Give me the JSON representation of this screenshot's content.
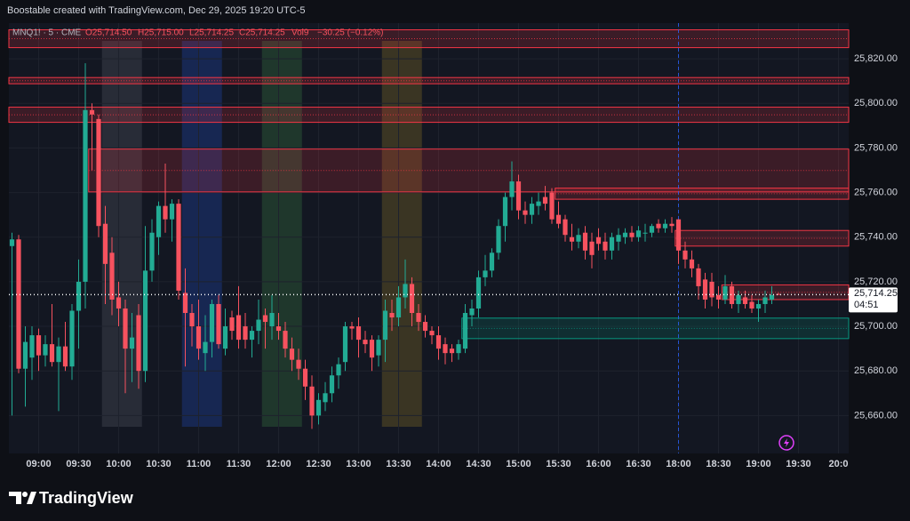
{
  "chart_data": {
    "type": "candlestick",
    "attribution": "Boostable created with TradingView.com, Dec 29, 2025 19:20 UTC-5",
    "legend": {
      "symbol": "MNQ1! · 5 · CME",
      "open": "O25,714.50",
      "high": "H25,715.00",
      "low": "L25,714.25",
      "close": "C25,714.25",
      "volume": "Vol9",
      "change": "−30.25 (−0.12%)"
    },
    "brand": "TradingView",
    "up_color": "#22ab94",
    "down_color": "#f7525f",
    "categories": [
      null,
      null,
      null,
      null,
      "09:00",
      null,
      null,
      null,
      null,
      null,
      "09:30",
      null,
      null,
      null,
      null,
      null,
      "10:00",
      null,
      null,
      null,
      null,
      null,
      "10:30",
      null,
      null,
      null,
      null,
      null,
      "11:00",
      null,
      null,
      null,
      null,
      null,
      "11:30",
      null,
      null,
      null,
      null,
      null,
      "12:00",
      null,
      null,
      null,
      null,
      null,
      "12:30",
      null,
      null,
      null,
      null,
      null,
      "13:00",
      null,
      null,
      null,
      null,
      null,
      "13:30",
      null,
      null,
      null,
      null,
      null,
      "14:00",
      null,
      null,
      null,
      null,
      null,
      "14:30",
      null,
      null,
      null,
      null,
      null,
      "15:00",
      null,
      null,
      null,
      null,
      null,
      "15:30",
      null,
      null,
      null,
      null,
      null,
      "16:00",
      null,
      null,
      null,
      null,
      null,
      "16:30",
      null,
      null,
      null,
      null,
      null,
      "18:00",
      null,
      null,
      null,
      null,
      null,
      "18:30",
      null,
      null,
      null,
      null,
      null,
      "19:00",
      null,
      null,
      null,
      null,
      null,
      "19:30",
      null,
      null,
      null,
      null,
      null,
      "20:0"
    ],
    "open": [
      25736,
      25739,
      25681,
      25686,
      25696,
      25687,
      25692,
      25684,
      25691,
      25682,
      25707,
      25720,
      25797,
      25793,
      25746,
      25733,
      25713,
      25708,
      25690,
      25705,
      25680,
      25725,
      25740,
      25754,
      25748,
      25755,
      25715,
      25706,
      25700,
      25688,
      25693,
      25710,
      25690,
      25704,
      25705,
      25700,
      25694,
      25698,
      25705,
      25700,
      25700,
      25698,
      25690,
      25685,
      25681,
      25673,
      25660,
      25666,
      25670,
      25678,
      25684,
      25700,
      25700,
      25694,
      25694,
      25687,
      25694,
      25706,
      25704,
      25713,
      25719,
      25706,
      25702,
      25698,
      25696,
      25692,
      25690,
      25688,
      25690,
      25705,
      25708,
      25722,
      25725,
      25733,
      25745,
      25758,
      25765,
      25752,
      25750,
      25754,
      25758,
      25760,
      25750,
      25748,
      25740,
      25738,
      25742,
      25738,
      25740,
      25738,
      25734,
      25738,
      25740,
      25742,
      25740,
      25742,
      25742,
      25746,
      25744,
      25746,
      25748,
      25734,
      25730,
      25726,
      25721,
      25720,
      25714,
      25712,
      25718,
      25710,
      25713,
      25711,
      25708,
      25710,
      25712,
      25714.5,
      null,
      null,
      null,
      null,
      null,
      null,
      null,
      null,
      null
    ],
    "high": [
      25742,
      25741,
      25700,
      25700,
      25699,
      25696,
      25710,
      25695,
      25702,
      25710,
      25730,
      25818,
      25800,
      25795,
      25754,
      25740,
      25720,
      25712,
      25706,
      25710,
      25745,
      25748,
      25756,
      25773,
      25757,
      25757,
      25726,
      25710,
      25712,
      25705,
      25712,
      25714,
      25708,
      25707,
      25718,
      25706,
      25700,
      25712,
      25708,
      25714,
      25706,
      25702,
      25695,
      25690,
      25685,
      25678,
      25670,
      25675,
      25682,
      25686,
      25702,
      25702,
      25704,
      25698,
      25696,
      25696,
      25712,
      25712,
      25718,
      25730,
      25722,
      25710,
      25705,
      25700,
      25700,
      25695,
      25692,
      25694,
      25710,
      25712,
      25725,
      25732,
      25735,
      25748,
      25760,
      25774,
      25768,
      25756,
      25758,
      25760,
      25763,
      25762,
      25756,
      25750,
      25746,
      25744,
      25745,
      25742,
      25744,
      25742,
      25742,
      25744,
      25744,
      25745,
      25745,
      25746,
      25746,
      25748,
      25748,
      25749,
      25748,
      25738,
      25734,
      25728,
      25724,
      25724,
      25718,
      25723,
      25720,
      25716,
      25716,
      25714,
      25712,
      25716,
      25718,
      25715,
      null,
      null,
      null,
      null,
      null,
      null,
      null,
      null,
      null
    ],
    "low": [
      25660,
      25679,
      25664,
      25676,
      25680,
      25682,
      25682,
      25662,
      25680,
      25676,
      25690,
      25708,
      25770,
      25740,
      25710,
      25705,
      25700,
      25670,
      25675,
      25672,
      25675,
      25720,
      25732,
      25742,
      25738,
      25712,
      25682,
      25691,
      25685,
      25680,
      25686,
      25690,
      25687,
      25694,
      25690,
      25690,
      25686,
      25692,
      25690,
      25694,
      25694,
      25686,
      25680,
      25676,
      25667,
      25654,
      25656,
      25662,
      25666,
      25672,
      25680,
      25694,
      25686,
      25688,
      25680,
      25682,
      25684,
      25698,
      25700,
      25708,
      25700,
      25698,
      25695,
      25692,
      25685,
      25683,
      25684,
      25685,
      25688,
      25700,
      25704,
      25718,
      25722,
      25730,
      25738,
      25752,
      25748,
      25746,
      25746,
      25750,
      25752,
      25746,
      25744,
      25738,
      25734,
      25735,
      25730,
      25726,
      25734,
      25730,
      25730,
      25734,
      25737,
      25738,
      25738,
      25738,
      25740,
      25742,
      25742,
      25742,
      25728,
      25726,
      25722,
      25712,
      25708,
      25709,
      25708,
      25710,
      25708,
      25706,
      25708,
      25706,
      25702,
      25706,
      25710,
      25714.25,
      null,
      null,
      null,
      null,
      null,
      null,
      null,
      null,
      null
    ],
    "close": [
      25739,
      25681,
      25693,
      25696,
      25687,
      25692,
      25684,
      25691,
      25682,
      25707,
      25720,
      25797,
      25795,
      25745,
      25728,
      25712,
      25708,
      25690,
      25695,
      25680,
      25725,
      25742,
      25754,
      25748,
      25755,
      25716,
      25706,
      25700,
      25690,
      25693,
      25710,
      25692,
      25700,
      25698,
      25694,
      25694,
      25698,
      25703,
      25702,
      25706,
      25698,
      25690,
      25685,
      25681,
      25673,
      25660,
      25667,
      25670,
      25678,
      25683,
      25700,
      25699,
      25694,
      25692,
      25686,
      25694,
      25707,
      25704,
      25713,
      25719,
      25706,
      25702,
      25698,
      25696,
      25690,
      25688,
      25688,
      25692,
      25706,
      25708,
      25722,
      25725,
      25733,
      25745,
      25758,
      25765,
      25752,
      25750,
      25755,
      25756,
      25755,
      25748,
      25746,
      25741,
      25738,
      25741,
      25734,
      25732,
      25737,
      25734,
      25740,
      25741,
      25742,
      25740,
      25743,
      25742,
      25745,
      25744,
      25746,
      25745,
      25734,
      25730,
      25726,
      25718,
      25712,
      25713,
      25712,
      25718,
      25710,
      25714,
      25710,
      25708,
      25710,
      25713,
      25714,
      25714.25,
      null,
      null,
      null,
      null,
      null,
      null,
      null,
      null,
      null
    ],
    "ylim": [
      25643,
      25836
    ],
    "yticks": [
      {
        "value": 25660,
        "label": "25,660.00"
      },
      {
        "value": 25680,
        "label": "25,680.00"
      },
      {
        "value": 25700,
        "label": "25,700.00"
      },
      {
        "value": 25720,
        "label": "25,720.00"
      },
      {
        "value": 25740,
        "label": "25,740.00"
      },
      {
        "value": 25760,
        "label": "25,760.00"
      },
      {
        "value": 25780,
        "label": "25,780.00"
      },
      {
        "value": 25800,
        "label": "25,800.00"
      },
      {
        "value": 25820,
        "label": "25,820.00"
      }
    ],
    "last_price": {
      "value": 25714.25,
      "label": "25,714.25"
    },
    "countdown": "04:51",
    "zones": [
      {
        "from": 0,
        "top": 25833,
        "bottom": 25825,
        "color": "#f23645"
      },
      {
        "from": 0,
        "top": 25811.6,
        "bottom": 25808.8,
        "color": "#f23645"
      },
      {
        "from": 0,
        "top": 25798.3,
        "bottom": 25791.5,
        "color": "#f23645"
      },
      {
        "from": 12,
        "top": 25779.5,
        "bottom": 25760.3,
        "color": "#f23645"
      },
      {
        "from": 82,
        "top": 25762,
        "bottom": 25757,
        "color": "#f23645"
      },
      {
        "from": 100,
        "top": 25743,
        "bottom": 25736,
        "color": "#f23645"
      },
      {
        "from": 107,
        "top": 25718.6,
        "bottom": 25712,
        "color": "#f23645"
      },
      {
        "from": 68,
        "top": 25703.7,
        "bottom": 25694.5,
        "color": "#089981"
      }
    ],
    "highlights": [
      {
        "from": 14,
        "to": 19,
        "color": "#787b86"
      },
      {
        "from": 26,
        "to": 31,
        "color": "#2962ff"
      },
      {
        "from": 38,
        "to": 43,
        "color": "#4caf50"
      },
      {
        "from": 56,
        "to": 61,
        "color": "#c9a62a"
      }
    ]
  }
}
